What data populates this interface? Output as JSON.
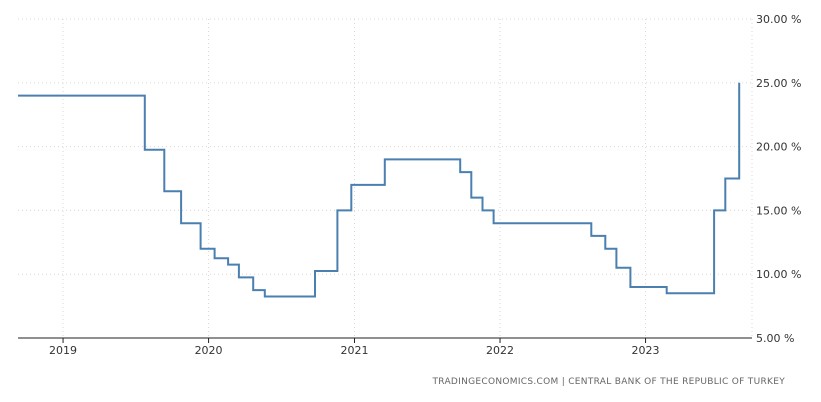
{
  "chart_data": {
    "type": "line",
    "title": "",
    "xlabel": "",
    "ylabel": "",
    "ylim": [
      5,
      30
    ],
    "y_ticks": [
      5,
      10,
      15,
      20,
      25,
      30
    ],
    "y_tick_labels": [
      "5.00 %",
      "10.00 %",
      "15.00 %",
      "20.00 %",
      "25.00 %",
      "30.00 %"
    ],
    "x_ticks": [
      "2019-01-01",
      "2020-01-01",
      "2021-01-01",
      "2022-01-01",
      "2023-01-01"
    ],
    "x_tick_labels": [
      "2019",
      "2020",
      "2021",
      "2022",
      "2023"
    ],
    "xlim": [
      "2018-09-10",
      "2023-09-25"
    ],
    "grid": true,
    "legend": "none",
    "step": true,
    "source": "TRADINGECONOMICS.COM  |  CENTRAL BANK OF THE REPUBLIC OF TURKEY",
    "colors": {
      "line": "#4a7fb0"
    },
    "series": [
      {
        "x": [
          "2018-09-10",
          "2019-07-25",
          "2019-09-12",
          "2019-10-24",
          "2019-12-12",
          "2020-01-16",
          "2020-02-19",
          "2020-03-17",
          "2020-04-22",
          "2020-05-21",
          "2020-09-24",
          "2020-11-19",
          "2020-12-24",
          "2021-03-18",
          "2021-09-23",
          "2021-10-21",
          "2021-11-18",
          "2021-12-16",
          "2022-08-18",
          "2022-09-22",
          "2022-10-20",
          "2022-11-24",
          "2023-02-23",
          "2023-06-22",
          "2023-07-20",
          "2023-08-24"
        ],
        "values": [
          24,
          19.75,
          16.5,
          14,
          12,
          11.25,
          10.75,
          9.75,
          8.75,
          8.25,
          10.25,
          15,
          17,
          19,
          18,
          16,
          15,
          14,
          13,
          12,
          10.5,
          9,
          8.5,
          15,
          17.5,
          25
        ]
      }
    ]
  }
}
